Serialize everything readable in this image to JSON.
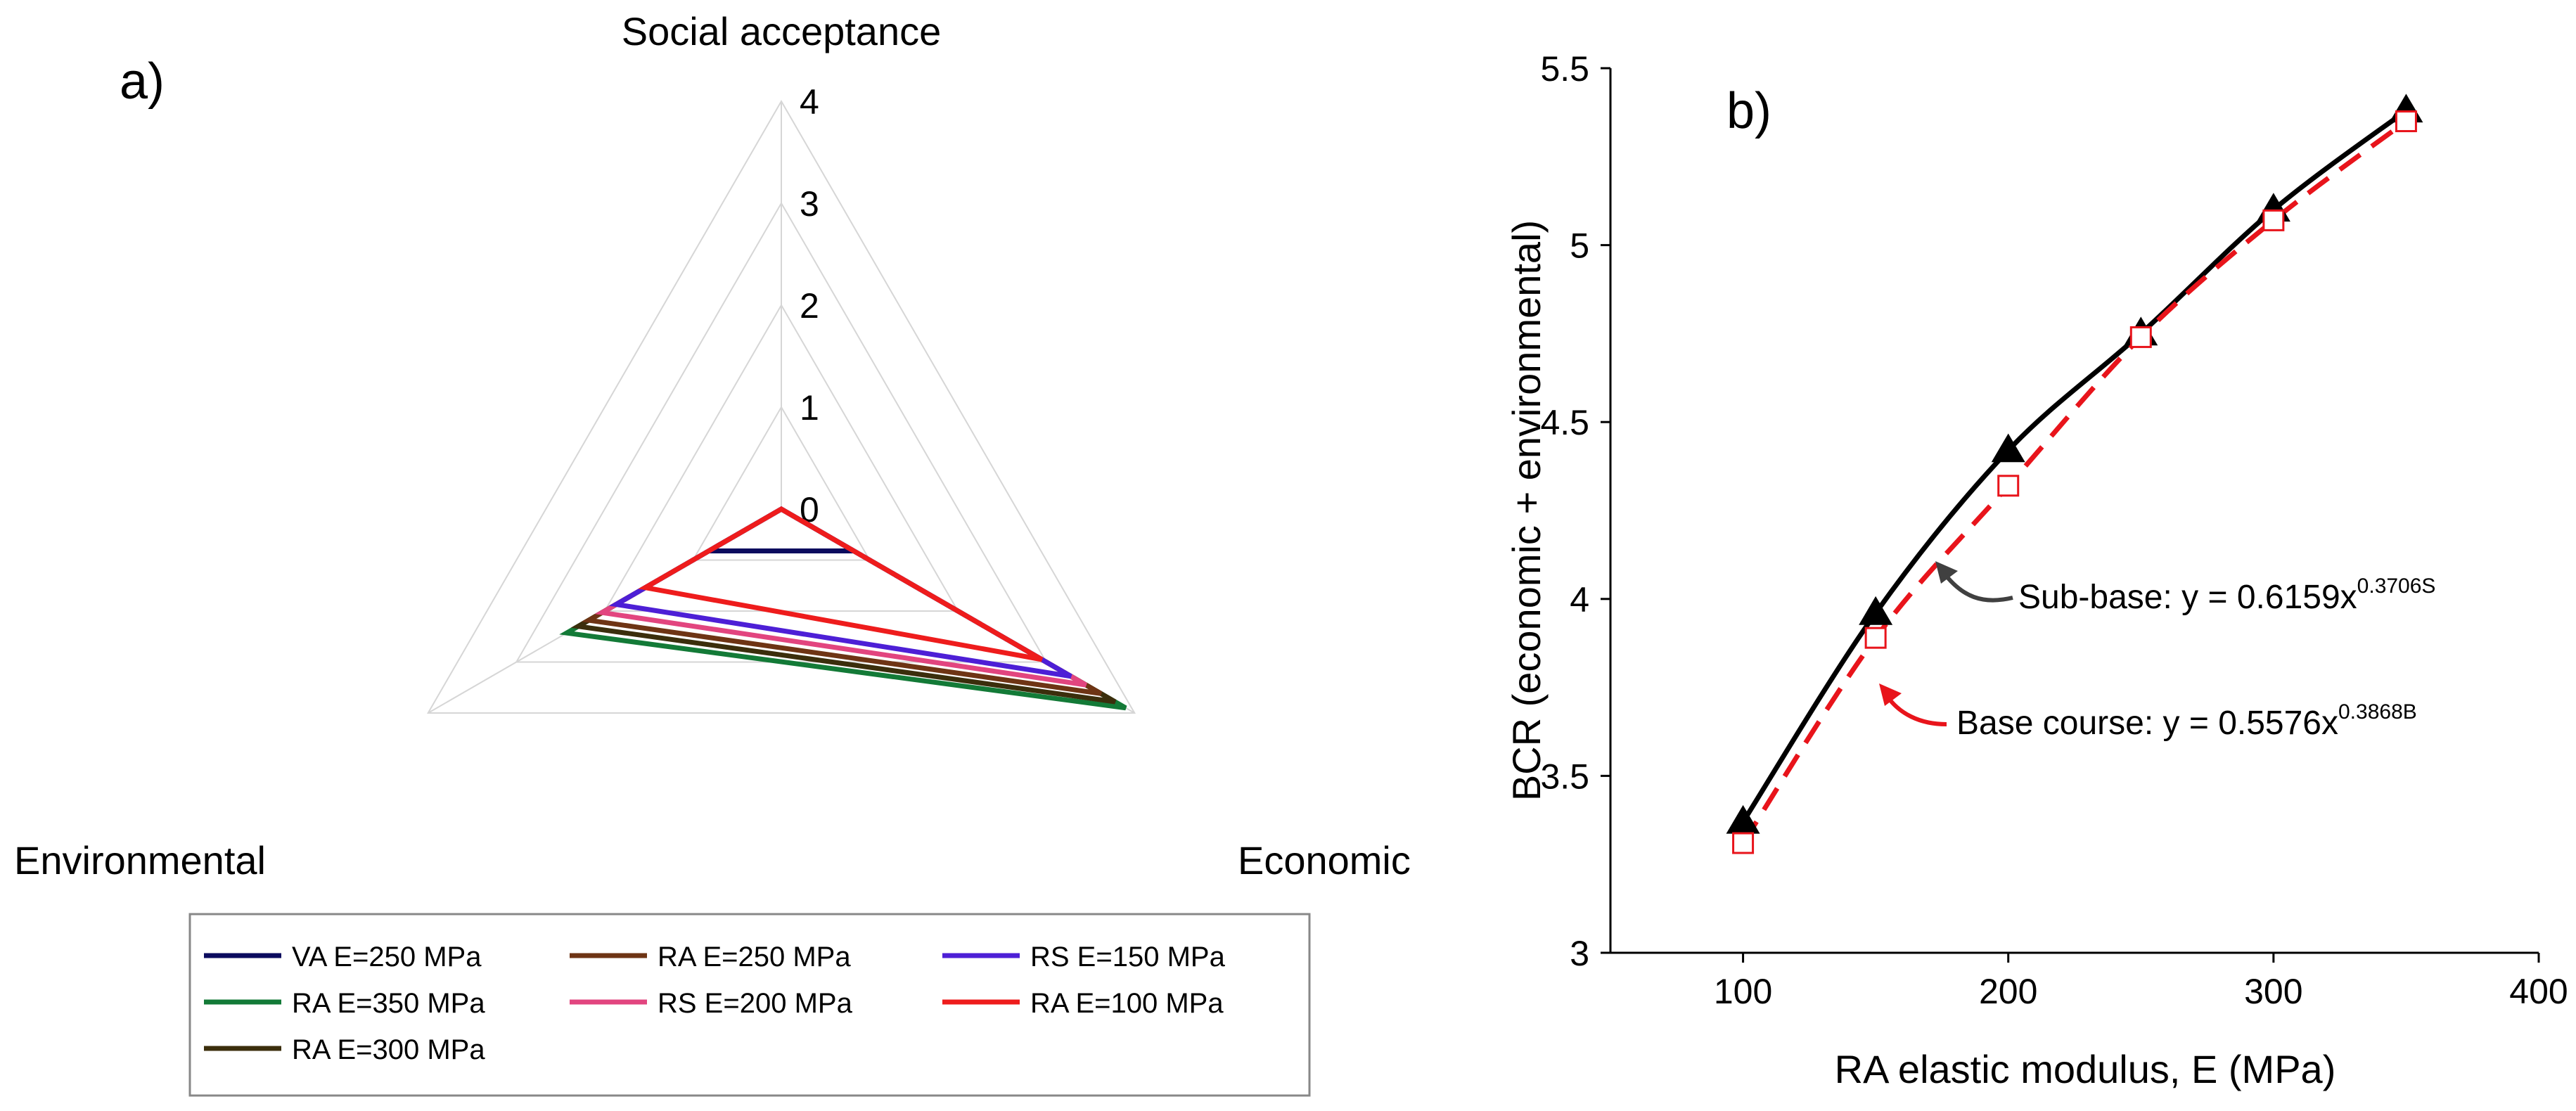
{
  "chart_data": [
    {
      "type": "radar",
      "panel_label": "a)",
      "axes": [
        "Social acceptance",
        "Economic",
        "Environmental"
      ],
      "rlim": [
        0,
        4
      ],
      "rticks": [
        "0",
        "1",
        "2",
        "3",
        "4"
      ],
      "series": [
        {
          "name": "VA E=250 MPa",
          "color": "#0b0b5e",
          "values": [
            0,
            0.82,
            0.82
          ]
        },
        {
          "name": "RA E=350 MPa",
          "color": "#137a37",
          "values": [
            0,
            3.9,
            2.43
          ]
        },
        {
          "name": "RA E=300 MPa",
          "color": "#3b2e0c",
          "values": [
            0,
            3.78,
            2.3
          ]
        },
        {
          "name": "RA E=250 MPa",
          "color": "#6e3414",
          "values": [
            0,
            3.62,
            2.18
          ]
        },
        {
          "name": "RS E=200 MPa",
          "color": "#e2457f",
          "values": [
            0,
            3.45,
            2.03
          ]
        },
        {
          "name": "RS E=150 MPa",
          "color": "#4d1fd6",
          "values": [
            0,
            3.28,
            1.87
          ]
        },
        {
          "name": "RA E=100 MPa",
          "color": "#ee1c1c",
          "values": [
            0,
            2.95,
            1.54
          ]
        }
      ]
    },
    {
      "type": "scatter_line",
      "panel_label": "b)",
      "xlabel": "RA elastic modulus, E (MPa)",
      "ylabel": "BCR (economic + environmental)",
      "xlim": [
        50,
        400
      ],
      "ylim": [
        3,
        5.5
      ],
      "xticks": [
        100,
        200,
        300,
        400
      ],
      "yticks": [
        3,
        3.5,
        4,
        4.5,
        5,
        5.5
      ],
      "xtick_labels": [
        "100",
        "200",
        "300",
        "400"
      ],
      "ytick_labels": [
        "3",
        "3.5",
        "4",
        "4.5",
        "5",
        "5.5"
      ],
      "series": [
        {
          "name": "Sub-base",
          "color": "#000000",
          "marker": "triangle-filled",
          "x": [
            100,
            150,
            200,
            250,
            300,
            350
          ],
          "y": [
            3.37,
            3.96,
            4.42,
            4.75,
            5.1,
            5.38
          ],
          "fit": {
            "a": 0.6159,
            "b": 0.3706,
            "style": "solid"
          }
        },
        {
          "name": "Base course",
          "color": "#e8141b",
          "marker": "square-open",
          "x": [
            100,
            150,
            200,
            250,
            300,
            350
          ],
          "y": [
            3.31,
            3.89,
            4.32,
            4.74,
            5.07,
            5.35
          ],
          "fit": {
            "a": 0.5576,
            "b": 0.3868,
            "style": "dashed"
          }
        }
      ],
      "annotations": [
        {
          "name": "Sub-base",
          "text_main": "Sub-base:  y = 0.6159x",
          "text_sup": "0.3706S"
        },
        {
          "name": "Base course",
          "text_main": "Base course:  y = 0.5576x",
          "text_sup": "0.3868B"
        }
      ]
    }
  ]
}
